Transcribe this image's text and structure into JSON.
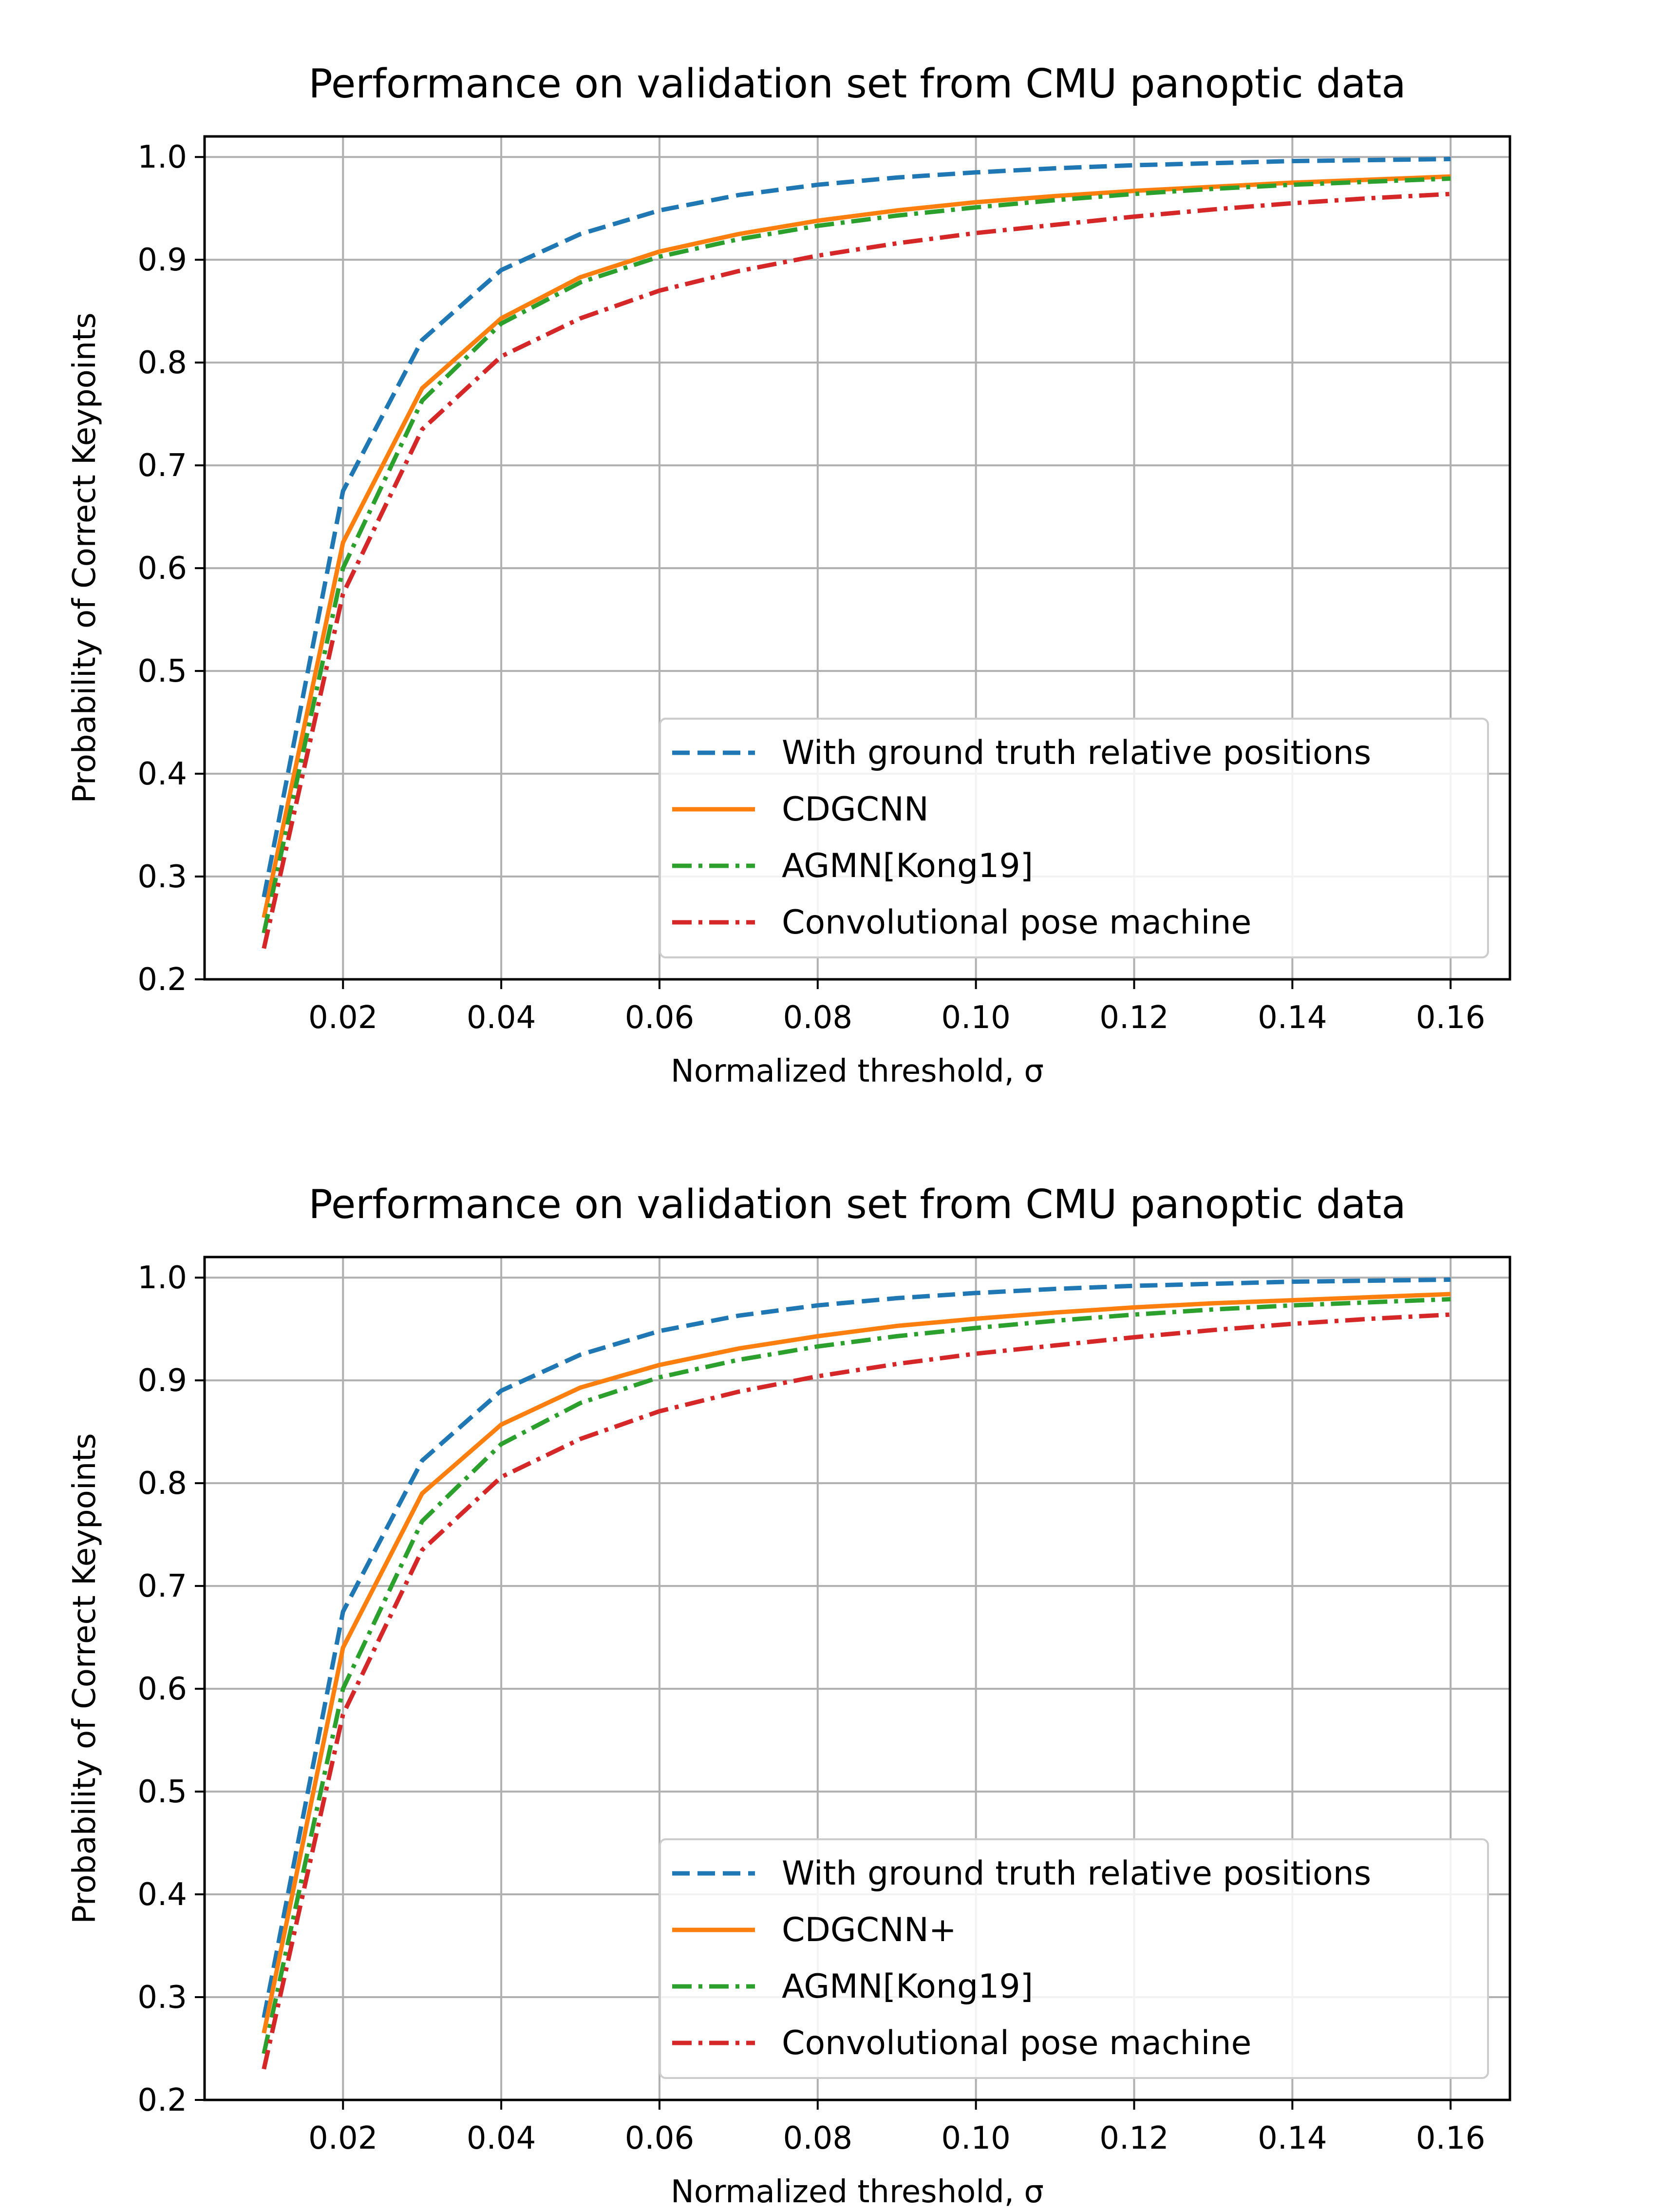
{
  "chart_data": [
    {
      "type": "line",
      "title": "Performance on validation set from CMU panoptic data",
      "xlabel": "Normalized threshold, σ",
      "ylabel": "Probability of Correct Keypoints",
      "xlim": [
        0.0025,
        0.1675
      ],
      "ylim": [
        0.2,
        1.02
      ],
      "xticks": [
        0.02,
        0.04,
        0.06,
        0.08,
        0.1,
        0.12,
        0.14,
        0.16
      ],
      "xtick_labels": [
        "0.02",
        "0.04",
        "0.06",
        "0.08",
        "0.10",
        "0.12",
        "0.14",
        "0.16"
      ],
      "yticks": [
        0.2,
        0.3,
        0.4,
        0.5,
        0.6,
        0.7,
        0.8,
        0.9,
        1.0
      ],
      "ytick_labels": [
        "0.2",
        "0.3",
        "0.4",
        "0.5",
        "0.6",
        "0.7",
        "0.8",
        "0.9",
        "1.0"
      ],
      "grid": true,
      "legend_position": "lower-right",
      "x": [
        0.01,
        0.02,
        0.03,
        0.04,
        0.05,
        0.06,
        0.07,
        0.08,
        0.09,
        0.1,
        0.11,
        0.12,
        0.13,
        0.14,
        0.15,
        0.16
      ],
      "series": [
        {
          "name": "With ground truth relative positions",
          "color": "#1f77b4",
          "dash": "dashed",
          "values": [
            0.28,
            0.675,
            0.822,
            0.89,
            0.925,
            0.948,
            0.963,
            0.973,
            0.98,
            0.985,
            0.989,
            0.992,
            0.994,
            0.996,
            0.997,
            0.998
          ]
        },
        {
          "name": "CDGCNN",
          "color": "#ff7f0e",
          "dash": "solid",
          "values": [
            0.26,
            0.625,
            0.775,
            0.843,
            0.883,
            0.908,
            0.925,
            0.938,
            0.948,
            0.956,
            0.962,
            0.967,
            0.971,
            0.975,
            0.978,
            0.981
          ]
        },
        {
          "name": "AGMN[Kong19]",
          "color": "#2ca02c",
          "dash": "dashdot",
          "values": [
            0.245,
            0.6,
            0.763,
            0.838,
            0.878,
            0.903,
            0.92,
            0.933,
            0.943,
            0.951,
            0.958,
            0.964,
            0.969,
            0.973,
            0.976,
            0.979
          ]
        },
        {
          "name": "Convolutional pose machine",
          "color": "#d62728",
          "dash": "dashdot",
          "values": [
            0.23,
            0.575,
            0.735,
            0.806,
            0.843,
            0.87,
            0.889,
            0.904,
            0.916,
            0.926,
            0.934,
            0.942,
            0.949,
            0.955,
            0.96,
            0.964
          ]
        }
      ]
    },
    {
      "type": "line",
      "title": "Performance on validation set from CMU panoptic data",
      "xlabel": "Normalized threshold, σ",
      "ylabel": "Probability of Correct Keypoints",
      "xlim": [
        0.0025,
        0.1675
      ],
      "ylim": [
        0.2,
        1.02
      ],
      "xticks": [
        0.02,
        0.04,
        0.06,
        0.08,
        0.1,
        0.12,
        0.14,
        0.16
      ],
      "xtick_labels": [
        "0.02",
        "0.04",
        "0.06",
        "0.08",
        "0.10",
        "0.12",
        "0.14",
        "0.16"
      ],
      "yticks": [
        0.2,
        0.3,
        0.4,
        0.5,
        0.6,
        0.7,
        0.8,
        0.9,
        1.0
      ],
      "ytick_labels": [
        "0.2",
        "0.3",
        "0.4",
        "0.5",
        "0.6",
        "0.7",
        "0.8",
        "0.9",
        "1.0"
      ],
      "grid": true,
      "legend_position": "lower-right",
      "x": [
        0.01,
        0.02,
        0.03,
        0.04,
        0.05,
        0.06,
        0.07,
        0.08,
        0.09,
        0.1,
        0.11,
        0.12,
        0.13,
        0.14,
        0.15,
        0.16
      ],
      "series": [
        {
          "name": "With ground truth relative positions",
          "color": "#1f77b4",
          "dash": "dashed",
          "values": [
            0.28,
            0.675,
            0.822,
            0.89,
            0.925,
            0.948,
            0.963,
            0.973,
            0.98,
            0.985,
            0.989,
            0.992,
            0.994,
            0.996,
            0.997,
            0.998
          ]
        },
        {
          "name": "CDGCNN+",
          "color": "#ff7f0e",
          "dash": "solid",
          "values": [
            0.265,
            0.64,
            0.79,
            0.857,
            0.893,
            0.915,
            0.931,
            0.943,
            0.953,
            0.96,
            0.966,
            0.971,
            0.975,
            0.978,
            0.981,
            0.984
          ]
        },
        {
          "name": "AGMN[Kong19]",
          "color": "#2ca02c",
          "dash": "dashdot",
          "values": [
            0.245,
            0.6,
            0.763,
            0.838,
            0.878,
            0.903,
            0.92,
            0.933,
            0.943,
            0.951,
            0.958,
            0.964,
            0.969,
            0.973,
            0.976,
            0.979
          ]
        },
        {
          "name": "Convolutional pose machine",
          "color": "#d62728",
          "dash": "dashdot",
          "values": [
            0.23,
            0.575,
            0.735,
            0.806,
            0.843,
            0.87,
            0.889,
            0.904,
            0.916,
            0.926,
            0.934,
            0.942,
            0.949,
            0.955,
            0.96,
            0.964
          ]
        }
      ]
    }
  ]
}
